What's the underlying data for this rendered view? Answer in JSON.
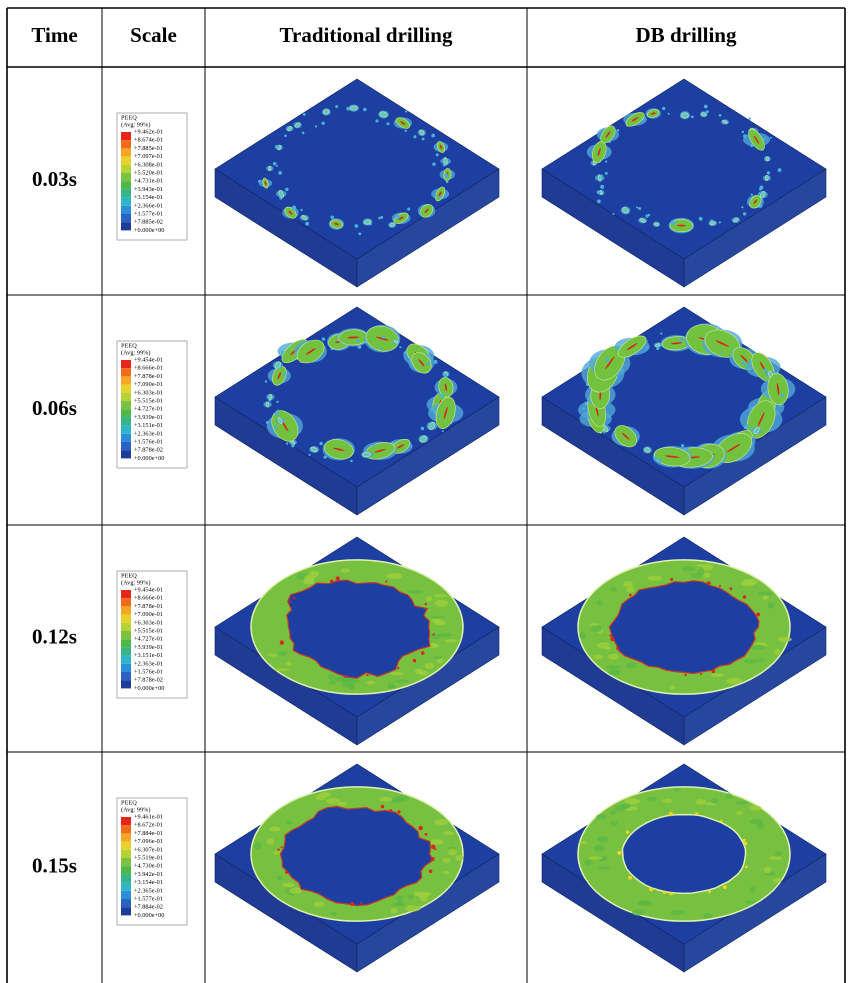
{
  "header": {
    "columns": [
      "Time",
      "Scale",
      "Traditional drilling",
      "DB drilling"
    ]
  },
  "rows": [
    {
      "time": "0.03s",
      "scale": {
        "title": "PEEQ",
        "subtitle": "(Avg: 99%)",
        "labels": [
          "+9.462e-01",
          "+8.674e-01",
          "+7.885e-01",
          "+7.097e-01",
          "+6.308e-01",
          "+5.520e-01",
          "+4.731e-01",
          "+3.943e-01",
          "+3.154e-01",
          "+2.366e-01",
          "+1.577e-01",
          "+7.885e-02",
          "+0.000e+00"
        ]
      }
    },
    {
      "time": "0.06s",
      "scale": {
        "title": "PEEQ",
        "subtitle": "(Avg: 99%)",
        "labels": [
          "+9.454e-01",
          "+8.666e-01",
          "+7.878e-01",
          "+7.090e-01",
          "+6.303e-01",
          "+5.515e-01",
          "+4.727e-01",
          "+3.939e-01",
          "+3.151e-01",
          "+2.363e-01",
          "+1.576e-01",
          "+7.878e-02",
          "+0.000e+00"
        ]
      }
    },
    {
      "time": "0.12s",
      "scale": {
        "title": "PEEQ",
        "subtitle": "(Avg: 99%)",
        "labels": [
          "+9.454e-01",
          "+8.666e-01",
          "+7.878e-01",
          "+7.090e-01",
          "+6.303e-01",
          "+5.515e-01",
          "+4.727e-01",
          "+3.939e-01",
          "+3.151e-01",
          "+2.363e-01",
          "+1.576e-01",
          "+7.878e-02",
          "+0.000e+00"
        ]
      }
    },
    {
      "time": "0.15s",
      "scale": {
        "title": "PEEQ",
        "subtitle": "(Avg: 99%)",
        "labels": [
          "+9.461e-01",
          "+8.672e-01",
          "+7.884e-01",
          "+7.096e-01",
          "+6.307e-01",
          "+5.519e-01",
          "+4.730e-01",
          "+3.942e-01",
          "+3.154e-01",
          "+2.365e-01",
          "+1.577e-01",
          "+7.884e-02",
          "+0.000e+00"
        ]
      }
    }
  ]
}
